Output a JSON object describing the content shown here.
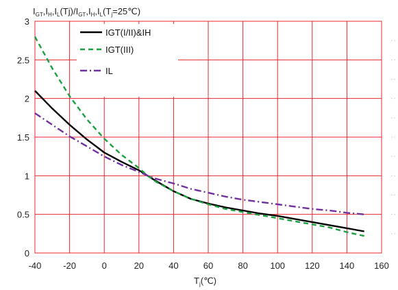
{
  "chart_data": {
    "type": "line",
    "title_parts": {
      "i1": "I",
      "s1": "GT",
      "c1": ",",
      "i2": "I",
      "s2": "H",
      "c2": ",",
      "i3": "I",
      "s3": "L",
      "m": "(Tj)/",
      "i4": "I",
      "s4": "GT",
      "c4": ",",
      "i5": "I",
      "s5": "H",
      "c5": ",",
      "i6": "I",
      "s6": "L",
      "p1": "(T",
      "s7": "j",
      "p2": "=25℃)"
    },
    "xlabel_parts": {
      "main": "T",
      "sub": "j",
      "rest": "(℃)"
    },
    "xlim": [
      -40,
      160
    ],
    "ylim": [
      0,
      3
    ],
    "x_ticks": [
      "-40",
      "-20",
      "0",
      "20",
      "40",
      "60",
      "80",
      "100",
      "120",
      "140",
      "160"
    ],
    "y_ticks": [
      "0",
      "0.5",
      "1",
      "1.5",
      "2",
      "2.5",
      "3"
    ],
    "grid": true,
    "legend_position": "top-left",
    "series": [
      {
        "name": "IGT(I/II)&IH",
        "color": "#000000",
        "dash": "solid",
        "x": [
          -40,
          -30,
          -20,
          -10,
          0,
          10,
          20,
          25,
          30,
          40,
          50,
          60,
          70,
          80,
          90,
          100,
          110,
          120,
          130,
          140,
          150
        ],
        "y": [
          2.1,
          1.87,
          1.66,
          1.47,
          1.3,
          1.18,
          1.07,
          1.0,
          0.93,
          0.8,
          0.7,
          0.64,
          0.59,
          0.55,
          0.51,
          0.48,
          0.44,
          0.4,
          0.36,
          0.32,
          0.28
        ]
      },
      {
        "name": "IGT(III)",
        "color": "#1aa040",
        "dash": "dashed",
        "x": [
          -40,
          -30,
          -20,
          -10,
          0,
          10,
          20,
          25,
          30,
          40,
          50,
          60,
          70,
          80,
          90,
          100,
          110,
          120,
          130,
          140,
          150
        ],
        "y": [
          2.8,
          2.39,
          2.03,
          1.73,
          1.48,
          1.27,
          1.1,
          1.0,
          0.92,
          0.8,
          0.7,
          0.63,
          0.57,
          0.53,
          0.49,
          0.45,
          0.41,
          0.37,
          0.33,
          0.27,
          0.22
        ]
      },
      {
        "name": "IL",
        "color": "#7030a0",
        "dash": "dashdot",
        "x": [
          -40,
          -30,
          -20,
          -10,
          0,
          10,
          20,
          25,
          30,
          40,
          50,
          60,
          70,
          80,
          90,
          100,
          110,
          120,
          130,
          140,
          150
        ],
        "y": [
          1.81,
          1.66,
          1.51,
          1.38,
          1.25,
          1.14,
          1.05,
          1.0,
          0.96,
          0.9,
          0.83,
          0.78,
          0.73,
          0.69,
          0.66,
          0.63,
          0.6,
          0.57,
          0.55,
          0.52,
          0.5
        ]
      }
    ]
  }
}
